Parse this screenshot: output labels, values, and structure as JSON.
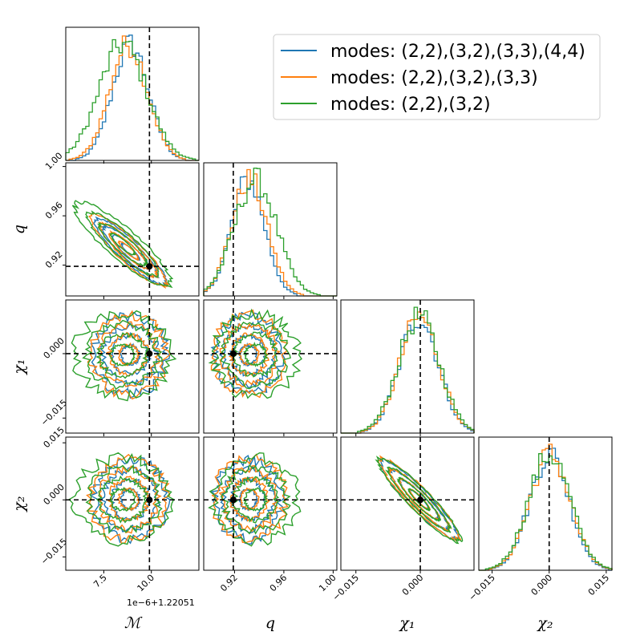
{
  "chart_data": {
    "type": "corner",
    "parameters": [
      {
        "key": "mc",
        "label": "ℳ",
        "range": [
          5.5,
          12.5
        ],
        "ticks": [
          7.5,
          10.0
        ],
        "tick_labels": [
          "7.5",
          "10.0"
        ],
        "offset_text": "1e−6+1.22051",
        "truth": 9.9
      },
      {
        "key": "q",
        "label": "q",
        "range": [
          0.895,
          1.003
        ],
        "ticks": [
          0.92,
          0.96,
          1.0
        ],
        "tick_labels": [
          "0.92",
          "0.96",
          "1.00"
        ],
        "truth": 0.919
      },
      {
        "key": "chi1",
        "label": "χ₁",
        "range": [
          -0.0185,
          0.0125
        ],
        "ticks": [
          -0.015,
          0.0
        ],
        "tick_labels": [
          "−0.015",
          "0.000"
        ],
        "truth": 0.0
      },
      {
        "key": "chi2",
        "label": "χ₂",
        "range": [
          -0.0185,
          0.0165
        ],
        "ticks": [
          -0.015,
          0.0,
          0.015
        ],
        "tick_labels": [
          "−0.015",
          "0.000",
          "0.015"
        ],
        "truth": 0.0
      }
    ],
    "series": [
      {
        "name": "modes: (2,2),(3,2),(3,3),(4,4)",
        "color": "#1f77b4",
        "means": [
          8.9,
          0.931,
          -0.0003,
          0.0001
        ],
        "sds": [
          0.95,
          0.0135,
          0.0045,
          0.0052
        ],
        "corr_mc_q": -0.9,
        "corr_chi1_chi2": -0.93
      },
      {
        "name": "modes: (2,2),(3,2),(3,3)",
        "color": "#ff7f0e",
        "means": [
          8.8,
          0.932,
          -0.0002,
          0.0002
        ],
        "sds": [
          1.0,
          0.0145,
          0.0046,
          0.0053
        ],
        "corr_mc_q": -0.9,
        "corr_chi1_chi2": -0.93
      },
      {
        "name": "modes: (2,2),(3,2)",
        "color": "#2ca02c",
        "means": [
          8.5,
          0.937,
          -0.0003,
          0.0001
        ],
        "sds": [
          1.25,
          0.017,
          0.0048,
          0.0055
        ],
        "corr_mc_q": -0.88,
        "corr_chi1_chi2": -0.93
      }
    ],
    "contour_levels_sigma": [
      0.5,
      1.0,
      1.5,
      2.0
    ],
    "histogram_bins": 40,
    "legend_position": "top-right",
    "truth_marker": "black dashed lines with black dot"
  }
}
